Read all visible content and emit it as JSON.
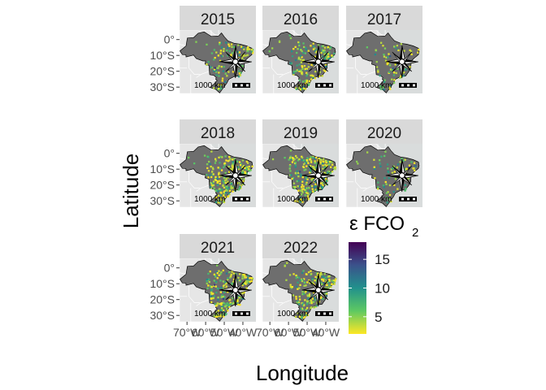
{
  "figure": {
    "xlabel": "Longitude",
    "ylabel": "Latitude",
    "x_ticks": [
      "70°W",
      "60°W",
      "50°W",
      "40°W"
    ],
    "y_ticks": [
      "0°",
      "10°S",
      "20°S",
      "30°S"
    ],
    "scale_bar_label": "1000 km"
  },
  "legend": {
    "title": "ε FCO",
    "title_subscript": "2",
    "ticks": [
      "15",
      "10",
      "5"
    ],
    "tick_values": [
      15,
      10,
      5
    ],
    "range": [
      2,
      18
    ],
    "colors": [
      "#fde725",
      "#5ec962",
      "#21918c",
      "#3b528b",
      "#440154"
    ]
  },
  "colors": {
    "panel_bg": "#d9dcdc",
    "land": "#e6e6e6",
    "brazil": "#6e6e6e",
    "strip": "#d9d9d9"
  },
  "chart_data": {
    "type": "map",
    "region": "Brazil",
    "variable": "ε FCO2",
    "xlim": [
      -74,
      -33
    ],
    "ylim": [
      -34,
      6
    ],
    "grid": false,
    "legend_placement": "right",
    "panels": [
      {
        "year": "2015",
        "density": 0.45
      },
      {
        "year": "2016",
        "density": 0.65
      },
      {
        "year": "2017",
        "density": 0.3
      },
      {
        "year": "2018",
        "density": 0.95
      },
      {
        "year": "2019",
        "density": 0.95
      },
      {
        "year": "2020",
        "density": 0.3
      },
      {
        "year": "2021",
        "density": 0.85
      },
      {
        "year": "2022",
        "density": 0.8
      }
    ]
  }
}
